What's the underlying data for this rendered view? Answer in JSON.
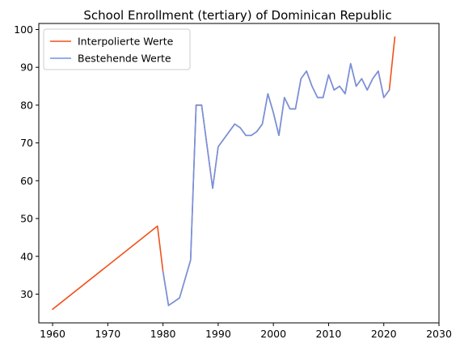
{
  "chart_data": {
    "type": "line",
    "title": "School Enrollment (tertiary) of Dominican Republic",
    "xlabel": "",
    "ylabel": "",
    "xlim": [
      1957.5,
      2030
    ],
    "ylim": [
      22.4,
      101.6
    ],
    "xticks": [
      1960,
      1970,
      1980,
      1990,
      2000,
      2010,
      2020,
      2030
    ],
    "yticks": [
      30,
      40,
      50,
      60,
      70,
      80,
      90,
      100
    ],
    "grid": false,
    "legend_position": "top-left",
    "series": [
      {
        "name": "Interpolierte Werte",
        "color": "#f2501a",
        "x": [
          1960,
          1979,
          1980,
          1981,
          1983,
          1985,
          1986,
          1987,
          1989,
          1990,
          1993,
          1994,
          1995,
          1996,
          1997,
          1998,
          1999,
          2000,
          2001,
          2002,
          2003,
          2004,
          2005,
          2006,
          2007,
          2008,
          2009,
          2010,
          2011,
          2012,
          2013,
          2014,
          2015,
          2016,
          2017,
          2018,
          2019,
          2020,
          2021,
          2022
        ],
        "values": [
          26,
          48,
          36,
          27,
          29,
          39,
          80,
          80,
          58,
          69,
          75,
          74,
          72,
          72,
          73,
          75,
          83,
          78,
          72,
          82,
          79,
          79,
          87,
          89,
          85,
          82,
          82,
          88,
          84,
          85,
          83,
          91,
          85,
          87,
          84,
          87,
          89,
          82,
          84,
          98
        ]
      },
      {
        "name": "Bestehende Werte",
        "color": "#6f94e6",
        "x": [
          1980,
          1981,
          1983,
          1985,
          1986,
          1987,
          1989,
          1990,
          1993,
          1994,
          1995,
          1996,
          1997,
          1998,
          1999,
          2000,
          2001,
          2002,
          2003,
          2004,
          2005,
          2006,
          2007,
          2008,
          2009,
          2010,
          2011,
          2012,
          2013,
          2014,
          2015,
          2016,
          2017,
          2018,
          2019,
          2020,
          2021
        ],
        "values": [
          36,
          27,
          29,
          39,
          80,
          80,
          58,
          69,
          75,
          74,
          72,
          72,
          73,
          75,
          83,
          78,
          72,
          82,
          79,
          79,
          87,
          89,
          85,
          82,
          82,
          88,
          84,
          85,
          83,
          91,
          85,
          87,
          84,
          87,
          89,
          82,
          84
        ]
      }
    ]
  }
}
